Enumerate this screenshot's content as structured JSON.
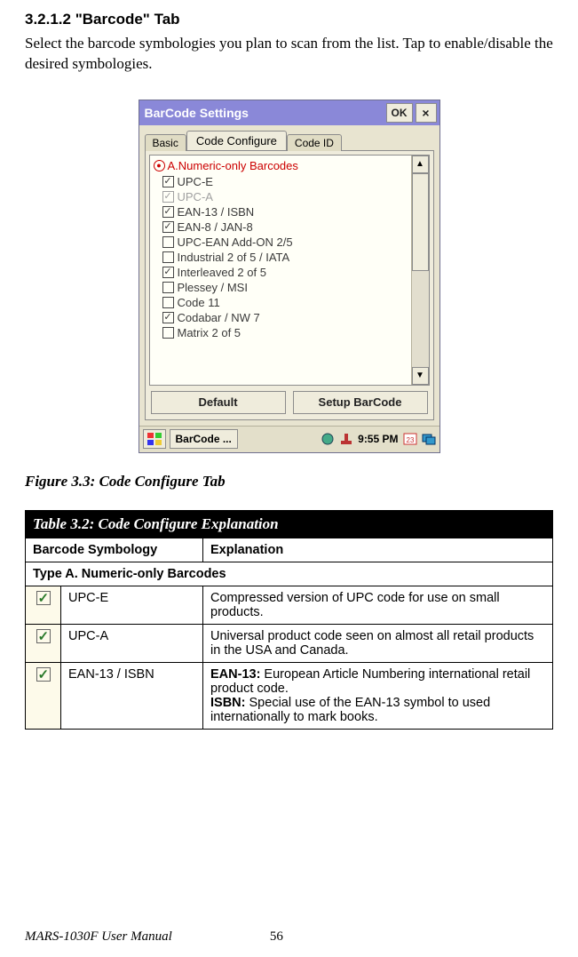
{
  "heading": "3.2.1.2   \"Barcode\" Tab",
  "body": "Select the barcode symbologies you plan to scan from the list. Tap to enable/disable the desired symbologies.",
  "window": {
    "title": "BarCode Settings",
    "ok": "OK",
    "close": "×",
    "tabs": {
      "basic": "Basic",
      "code_configure": "Code Configure",
      "code_id": "Code ID"
    },
    "list_header": "A.Numeric-only Barcodes",
    "items": [
      {
        "label": "UPC-E",
        "checked": true,
        "dim": false
      },
      {
        "label": "UPC-A",
        "checked": true,
        "dim": true
      },
      {
        "label": "EAN-13 / ISBN",
        "checked": true,
        "dim": false
      },
      {
        "label": "EAN-8 / JAN-8",
        "checked": true,
        "dim": false
      },
      {
        "label": "UPC-EAN Add-ON 2/5",
        "checked": false,
        "dim": false
      },
      {
        "label": "Industrial 2 of 5 / IATA",
        "checked": false,
        "dim": false
      },
      {
        "label": "Interleaved 2 of 5",
        "checked": true,
        "dim": false
      },
      {
        "label": "Plessey / MSI",
        "checked": false,
        "dim": false
      },
      {
        "label": "Code 11",
        "checked": false,
        "dim": false
      },
      {
        "label": "Codabar / NW 7",
        "checked": true,
        "dim": false
      },
      {
        "label": "Matrix 2 of 5",
        "checked": false,
        "dim": false
      }
    ],
    "btn_default": "Default",
    "btn_setup": "Setup BarCode",
    "taskbar_item": "BarCode ...",
    "time": "9:55 PM"
  },
  "figure_caption": "Figure 3.3:    Code Configure Tab",
  "table": {
    "title": "Table 3.2: Code Configure Explanation",
    "col1": "Barcode Symbology",
    "col2": "Explanation",
    "section": "Type A. Numeric-only Barcodes",
    "rows": [
      {
        "name": "UPC-E",
        "desc": "Compressed version of UPC code for use on small products."
      },
      {
        "name": "UPC-A",
        "desc": "Universal product code seen on almost all retail products in the USA and Canada."
      },
      {
        "name": "EAN-13 / ISBN",
        "desc_html": "<b>EAN-13:</b> European Article Numbering international retail product code.<br><b>ISBN:</b> Special use of the EAN-13 symbol to used internationally to mark books."
      }
    ]
  },
  "footer": {
    "manual": "MARS-1030F User Manual",
    "page": "56"
  }
}
